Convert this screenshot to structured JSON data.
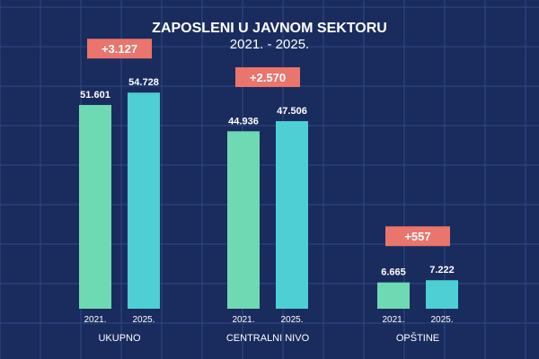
{
  "chart_data": {
    "type": "bar",
    "title": "ZAPOSLENI U JAVNOM SEKTORU",
    "subtitle": "2021. - 2025.",
    "categories": [
      "UKUPNO",
      "CENTRALNI NIVO",
      "OPŠTINE"
    ],
    "series": [
      {
        "name": "2021.",
        "values": [
          51601,
          44936,
          6665
        ],
        "value_labels": [
          "51.601",
          "44.936",
          "6.665"
        ]
      },
      {
        "name": "2025.",
        "values": [
          54728,
          47506,
          7222
        ],
        "value_labels": [
          "54.728",
          "47.506",
          "7.222"
        ]
      }
    ],
    "differences": [
      "+3.127",
      "+2.570",
      "+557"
    ],
    "ylim": [
      0,
      60000
    ],
    "grid": true,
    "legend": "none",
    "colors": {
      "background": "#1a2b5e",
      "grid": "#2f4a86",
      "series_2021": "#6ed9b2",
      "series_2025": "#4dcfd3",
      "difference_badge": "#e9756c",
      "text": "#ffffff"
    }
  }
}
